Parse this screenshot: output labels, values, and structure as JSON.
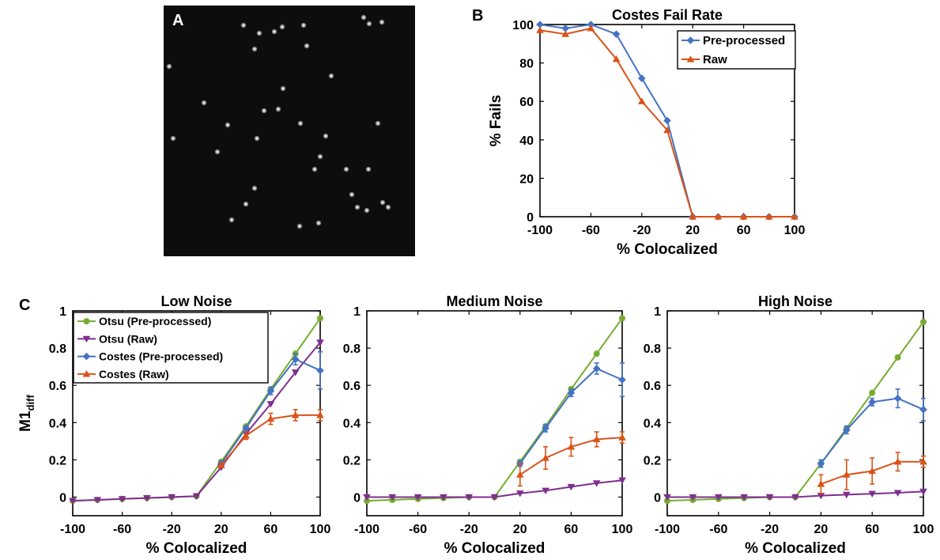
{
  "panel_labels": {
    "a": "A",
    "b": "B",
    "c": "C"
  },
  "colors": {
    "otsu_pre": "#77ac30",
    "otsu_raw": "#7e2f8e",
    "costes_pre": "#4472c4",
    "costes_raw": "#d95319",
    "image_bg": "#0d0d0d",
    "spot": "#d8d8d8"
  },
  "microscopy": {
    "panel": "A"
  },
  "chart_data": [
    {
      "type": "line",
      "panel": "B",
      "title": "Costes Fail Rate",
      "xlabel": "% Colocalized",
      "ylabel": "% Fails",
      "xlim": [
        -100,
        100
      ],
      "ylim": [
        0,
        100
      ],
      "xticks": [
        -100,
        -60,
        -20,
        20,
        60,
        100
      ],
      "yticks": [
        0,
        20,
        40,
        60,
        80,
        100
      ],
      "legend_position": "top-right",
      "x": [
        -100,
        -80,
        -60,
        -40,
        -20,
        0,
        20,
        40,
        60,
        80,
        100
      ],
      "series": [
        {
          "name": "Pre-processed",
          "color": "#4472c4",
          "marker": "diamond",
          "values": [
            100,
            98,
            100,
            95,
            72,
            50,
            0,
            0,
            0,
            0,
            0
          ]
        },
        {
          "name": "Raw",
          "color": "#d95319",
          "marker": "triangle",
          "values": [
            97,
            95,
            98,
            82,
            60,
            45,
            0,
            0,
            0,
            0,
            0
          ]
        }
      ]
    },
    {
      "type": "line",
      "panel": "C",
      "title": "Low Noise",
      "xlabel": "% Colocalized",
      "ylabel": "M1",
      "ylabel_sub": "diff",
      "xlim": [
        -100,
        100
      ],
      "ylim": [
        -0.1,
        1
      ],
      "xticks": [
        -100,
        -60,
        -20,
        20,
        60,
        100
      ],
      "yticks": [
        0,
        0.2,
        0.4,
        0.6,
        0.8,
        1
      ],
      "legend_position": "top-left",
      "x": [
        -100,
        -80,
        -60,
        -40,
        -20,
        0,
        20,
        40,
        60,
        80,
        100
      ],
      "series": [
        {
          "name": "Otsu (Pre-processed)",
          "color": "#77ac30",
          "marker": "circle",
          "values": [
            -0.02,
            -0.015,
            -0.01,
            -0.005,
            0,
            0.005,
            0.19,
            0.38,
            0.58,
            0.77,
            0.96
          ],
          "err": []
        },
        {
          "name": "Otsu (Raw)",
          "color": "#7e2f8e",
          "marker": "triangle-down",
          "values": [
            -0.02,
            -0.015,
            -0.01,
            -0.005,
            0,
            0.005,
            0.16,
            0.34,
            0.5,
            0.67,
            0.83
          ],
          "err": []
        },
        {
          "name": "Costes (Pre-processed)",
          "color": "#4472c4",
          "marker": "diamond",
          "values": [
            null,
            null,
            null,
            null,
            null,
            null,
            0.18,
            0.37,
            0.57,
            0.74,
            0.68
          ],
          "err": [
            0,
            0,
            0,
            0,
            0,
            0,
            0.01,
            0.01,
            0.02,
            0.03,
            0.1
          ]
        },
        {
          "name": "Costes (Raw)",
          "color": "#d95319",
          "marker": "triangle",
          "values": [
            null,
            null,
            null,
            null,
            null,
            null,
            0.17,
            0.33,
            0.42,
            0.44,
            0.44
          ],
          "err": [
            0,
            0,
            0,
            0,
            0,
            0,
            0.01,
            0.02,
            0.03,
            0.03,
            0.03
          ]
        }
      ]
    },
    {
      "type": "line",
      "panel": "C",
      "title": "Medium Noise",
      "xlabel": "% Colocalized",
      "ylabel": "",
      "xlim": [
        -100,
        100
      ],
      "ylim": [
        -0.1,
        1
      ],
      "xticks": [
        -100,
        -60,
        -20,
        20,
        60,
        100
      ],
      "yticks": [
        0,
        0.2,
        0.4,
        0.6,
        0.8,
        1
      ],
      "x": [
        -100,
        -80,
        -60,
        -40,
        -20,
        0,
        20,
        40,
        60,
        80,
        100
      ],
      "series": [
        {
          "name": "Otsu (Pre-processed)",
          "color": "#77ac30",
          "marker": "circle",
          "values": [
            -0.02,
            -0.015,
            -0.01,
            -0.005,
            0,
            0,
            0.19,
            0.38,
            0.58,
            0.77,
            0.96
          ],
          "err": []
        },
        {
          "name": "Otsu (Raw)",
          "color": "#7e2f8e",
          "marker": "triangle-down",
          "values": [
            0,
            0,
            0,
            0,
            0,
            0,
            0.02,
            0.035,
            0.055,
            0.075,
            0.09
          ],
          "err": []
        },
        {
          "name": "Costes (Pre-processed)",
          "color": "#4472c4",
          "marker": "diamond",
          "values": [
            null,
            null,
            null,
            null,
            null,
            null,
            0.18,
            0.37,
            0.56,
            0.69,
            0.63
          ],
          "err": [
            0,
            0,
            0,
            0,
            0,
            0,
            0.015,
            0.02,
            0.02,
            0.03,
            0.09
          ]
        },
        {
          "name": "Costes (Raw)",
          "color": "#d95319",
          "marker": "triangle",
          "values": [
            null,
            null,
            null,
            null,
            null,
            null,
            0.12,
            0.21,
            0.27,
            0.31,
            0.32
          ],
          "err": [
            0,
            0,
            0,
            0,
            0,
            0,
            0.06,
            0.06,
            0.05,
            0.04,
            0.03
          ]
        }
      ]
    },
    {
      "type": "line",
      "panel": "C",
      "title": "High Noise",
      "xlabel": "% Colocalized",
      "ylabel": "",
      "xlim": [
        -100,
        100
      ],
      "ylim": [
        -0.1,
        1
      ],
      "xticks": [
        -100,
        -60,
        -20,
        20,
        60,
        100
      ],
      "yticks": [
        0,
        0.2,
        0.4,
        0.6,
        0.8,
        1
      ],
      "x": [
        -100,
        -80,
        -60,
        -40,
        -20,
        0,
        20,
        40,
        60,
        80,
        100
      ],
      "series": [
        {
          "name": "Otsu (Pre-processed)",
          "color": "#77ac30",
          "marker": "circle",
          "values": [
            -0.02,
            -0.015,
            -0.01,
            -0.005,
            0,
            0,
            0.18,
            0.37,
            0.56,
            0.75,
            0.94
          ],
          "err": []
        },
        {
          "name": "Otsu (Raw)",
          "color": "#7e2f8e",
          "marker": "triangle-down",
          "values": [
            0,
            0,
            0,
            0,
            0,
            0,
            0.008,
            0.013,
            0.018,
            0.023,
            0.03
          ],
          "err": []
        },
        {
          "name": "Costes (Pre-processed)",
          "color": "#4472c4",
          "marker": "diamond",
          "values": [
            null,
            null,
            null,
            null,
            null,
            null,
            0.18,
            0.36,
            0.51,
            0.53,
            0.47
          ],
          "err": [
            0,
            0,
            0,
            0,
            0,
            0,
            0.02,
            0.02,
            0.02,
            0.05,
            0.06
          ]
        },
        {
          "name": "Costes (Raw)",
          "color": "#d95319",
          "marker": "triangle",
          "values": [
            null,
            null,
            null,
            null,
            null,
            null,
            0.07,
            0.12,
            0.14,
            0.19,
            0.19
          ],
          "err": [
            0,
            0,
            0,
            0,
            0,
            0,
            0.05,
            0.08,
            0.07,
            0.05,
            0.03
          ]
        }
      ]
    }
  ]
}
